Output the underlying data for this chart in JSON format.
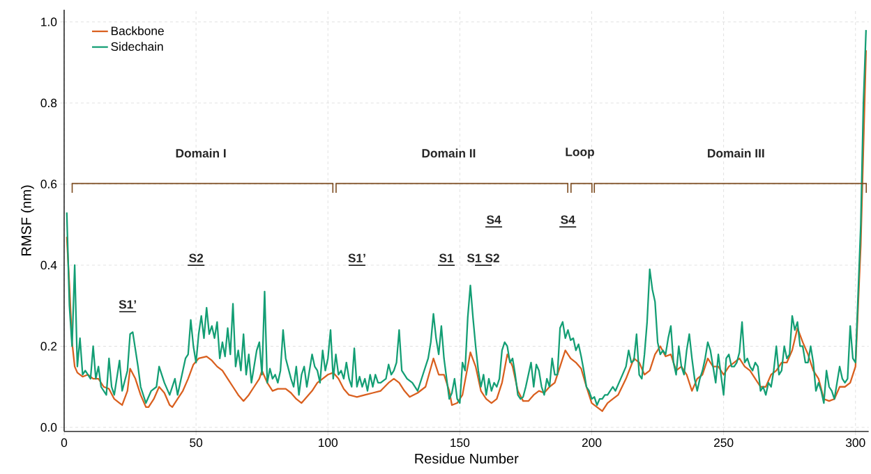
{
  "chart_data": {
    "type": "line",
    "xlabel": "Residue Number",
    "ylabel": "RMSF (nm)",
    "xlim": [
      0,
      305
    ],
    "ylim": [
      -0.01,
      1.03
    ],
    "xticks": [
      0,
      50,
      100,
      150,
      200,
      250,
      300
    ],
    "yticks": [
      {
        "value": 0,
        "label": "0.0"
      },
      {
        "value": 0.2,
        "label": "0.2"
      },
      {
        "value": 0.4,
        "label": "0.4"
      },
      {
        "value": 0.6,
        "label": "0.6"
      },
      {
        "value": 0.8,
        "label": "0.8"
      },
      {
        "value": 1.0,
        "label": "1.0"
      }
    ],
    "grid": true,
    "legend": "top left",
    "series": [
      {
        "name": "Backbone",
        "color": "#d95f1e",
        "x": [
          1,
          2,
          3,
          4,
          5,
          7,
          9,
          11,
          13,
          15,
          17,
          19,
          21,
          22,
          24,
          25,
          27,
          29,
          31,
          32,
          34,
          36,
          38,
          40,
          41,
          43,
          45,
          47,
          49,
          51,
          54,
          56,
          58,
          60,
          62,
          64,
          66,
          68,
          70,
          72,
          74,
          75,
          77,
          79,
          81,
          84,
          86,
          88,
          90,
          92,
          94,
          96,
          98,
          100,
          102,
          104,
          106,
          108,
          111,
          114,
          117,
          120,
          123,
          125,
          127,
          129,
          131,
          134,
          137,
          140,
          142,
          144,
          146,
          147,
          149,
          151,
          153,
          154,
          156,
          158,
          160,
          162,
          164,
          166,
          168,
          170,
          172,
          174,
          176,
          178,
          180,
          182,
          184,
          186,
          188,
          190,
          192,
          194,
          196,
          198,
          200,
          202,
          204,
          206,
          208,
          210,
          213,
          216,
          218,
          220,
          222,
          224,
          226,
          228,
          230,
          232,
          234,
          236,
          238,
          240,
          242,
          244,
          246,
          248,
          250,
          252,
          254,
          256,
          258,
          260,
          262,
          264,
          266,
          268,
          270,
          272,
          274,
          276,
          278,
          280,
          282,
          284,
          286,
          288,
          290,
          292,
          294,
          296,
          298,
          300,
          302,
          304
        ],
        "values": [
          0.47,
          0.35,
          0.21,
          0.15,
          0.135,
          0.125,
          0.13,
          0.12,
          0.12,
          0.1,
          0.095,
          0.07,
          0.06,
          0.055,
          0.09,
          0.145,
          0.12,
          0.08,
          0.05,
          0.05,
          0.07,
          0.1,
          0.085,
          0.055,
          0.05,
          0.07,
          0.09,
          0.12,
          0.155,
          0.17,
          0.175,
          0.165,
          0.15,
          0.14,
          0.12,
          0.1,
          0.08,
          0.065,
          0.08,
          0.1,
          0.12,
          0.14,
          0.11,
          0.09,
          0.095,
          0.095,
          0.085,
          0.07,
          0.06,
          0.075,
          0.09,
          0.11,
          0.12,
          0.13,
          0.135,
          0.12,
          0.095,
          0.08,
          0.075,
          0.08,
          0.085,
          0.09,
          0.11,
          0.12,
          0.11,
          0.09,
          0.075,
          0.085,
          0.1,
          0.17,
          0.13,
          0.13,
          0.09,
          0.055,
          0.06,
          0.08,
          0.15,
          0.185,
          0.15,
          0.09,
          0.07,
          0.06,
          0.07,
          0.11,
          0.18,
          0.15,
          0.09,
          0.065,
          0.065,
          0.08,
          0.09,
          0.085,
          0.1,
          0.11,
          0.15,
          0.19,
          0.17,
          0.16,
          0.145,
          0.1,
          0.06,
          0.05,
          0.04,
          0.06,
          0.07,
          0.08,
          0.12,
          0.17,
          0.16,
          0.13,
          0.14,
          0.18,
          0.2,
          0.175,
          0.18,
          0.14,
          0.15,
          0.13,
          0.09,
          0.12,
          0.13,
          0.17,
          0.15,
          0.15,
          0.13,
          0.15,
          0.16,
          0.17,
          0.15,
          0.14,
          0.12,
          0.1,
          0.1,
          0.13,
          0.14,
          0.16,
          0.16,
          0.19,
          0.245,
          0.21,
          0.18,
          0.14,
          0.12,
          0.07,
          0.065,
          0.07,
          0.1,
          0.1,
          0.11,
          0.15,
          0.45,
          0.93
        ]
      },
      {
        "name": "Sidechain",
        "color": "#139e74",
        "x": [
          1,
          2,
          3,
          4,
          5,
          6,
          7,
          8,
          10,
          11,
          12,
          13,
          14,
          16,
          17,
          18,
          19,
          21,
          22,
          24,
          25,
          26,
          28,
          29,
          31,
          33,
          35,
          36,
          38,
          40,
          42,
          43,
          45,
          46,
          47,
          48,
          49,
          50,
          51,
          52,
          53,
          54,
          55,
          56,
          57,
          58,
          59,
          60,
          61,
          62,
          63,
          64,
          65,
          66,
          67,
          68,
          69,
          70,
          71,
          72,
          73,
          74,
          75,
          76,
          77,
          78,
          79,
          80,
          81,
          82,
          83,
          84,
          86,
          87,
          88,
          89,
          90,
          91,
          92,
          93,
          94,
          95,
          96,
          97,
          98,
          99,
          100,
          101,
          102,
          103,
          104,
          105,
          106,
          107,
          108,
          109,
          110,
          111,
          112,
          113,
          114,
          115,
          116,
          117,
          118,
          119,
          120,
          122,
          123,
          124,
          125,
          126,
          127,
          128,
          130,
          132,
          134,
          136,
          138,
          139,
          140,
          141,
          142,
          143,
          144,
          145,
          146,
          147,
          148,
          149,
          150,
          151,
          152,
          153,
          154,
          155,
          156,
          157,
          158,
          159,
          160,
          161,
          162,
          163,
          164,
          165,
          166,
          167,
          168,
          169,
          170,
          171,
          172,
          173,
          174,
          175,
          176,
          177,
          178,
          179,
          180,
          181,
          182,
          183,
          184,
          185,
          186,
          187,
          188,
          189,
          190,
          191,
          192,
          193,
          194,
          195,
          196,
          197,
          198,
          199,
          200,
          201,
          202,
          203,
          204,
          205,
          206,
          207,
          208,
          209,
          211,
          213,
          214,
          215,
          216,
          217,
          218,
          219,
          220,
          221,
          222,
          223,
          224,
          225,
          226,
          227,
          228,
          229,
          230,
          231,
          232,
          233,
          234,
          235,
          236,
          237,
          238,
          239,
          240,
          241,
          242,
          243,
          244,
          245,
          246,
          247,
          248,
          249,
          250,
          251,
          252,
          253,
          254,
          255,
          256,
          257,
          258,
          259,
          260,
          261,
          262,
          263,
          264,
          265,
          266,
          267,
          268,
          269,
          270,
          271,
          272,
          273,
          274,
          275,
          276,
          277,
          278,
          279,
          280,
          281,
          282,
          283,
          284,
          285,
          286,
          287,
          288,
          289,
          290,
          291,
          292,
          293,
          294,
          295,
          296,
          297,
          298,
          299,
          300,
          302,
          303,
          304
        ],
        "values": [
          0.53,
          0.3,
          0.2,
          0.4,
          0.15,
          0.22,
          0.13,
          0.14,
          0.12,
          0.2,
          0.12,
          0.15,
          0.1,
          0.08,
          0.17,
          0.1,
          0.08,
          0.165,
          0.09,
          0.14,
          0.23,
          0.235,
          0.15,
          0.1,
          0.06,
          0.09,
          0.1,
          0.15,
          0.11,
          0.08,
          0.12,
          0.08,
          0.14,
          0.17,
          0.18,
          0.265,
          0.2,
          0.16,
          0.23,
          0.275,
          0.22,
          0.295,
          0.23,
          0.25,
          0.22,
          0.26,
          0.17,
          0.21,
          0.175,
          0.245,
          0.18,
          0.305,
          0.15,
          0.19,
          0.14,
          0.23,
          0.13,
          0.18,
          0.11,
          0.15,
          0.19,
          0.21,
          0.13,
          0.335,
          0.11,
          0.145,
          0.12,
          0.13,
          0.11,
          0.14,
          0.24,
          0.17,
          0.12,
          0.1,
          0.15,
          0.08,
          0.13,
          0.15,
          0.1,
          0.14,
          0.18,
          0.15,
          0.14,
          0.11,
          0.19,
          0.14,
          0.17,
          0.24,
          0.12,
          0.18,
          0.13,
          0.14,
          0.12,
          0.16,
          0.12,
          0.1,
          0.195,
          0.1,
          0.125,
          0.1,
          0.12,
          0.09,
          0.13,
          0.1,
          0.13,
          0.11,
          0.11,
          0.12,
          0.155,
          0.13,
          0.14,
          0.16,
          0.24,
          0.14,
          0.12,
          0.11,
          0.09,
          0.13,
          0.17,
          0.21,
          0.28,
          0.22,
          0.18,
          0.25,
          0.17,
          0.12,
          0.07,
          0.085,
          0.12,
          0.07,
          0.06,
          0.16,
          0.14,
          0.27,
          0.35,
          0.27,
          0.2,
          0.14,
          0.1,
          0.13,
          0.08,
          0.12,
          0.09,
          0.11,
          0.1,
          0.12,
          0.19,
          0.21,
          0.2,
          0.16,
          0.17,
          0.13,
          0.08,
          0.07,
          0.075,
          0.1,
          0.13,
          0.16,
          0.1,
          0.155,
          0.14,
          0.1,
          0.08,
          0.12,
          0.1,
          0.17,
          0.13,
          0.13,
          0.245,
          0.26,
          0.22,
          0.24,
          0.215,
          0.22,
          0.19,
          0.205,
          0.175,
          0.14,
          0.1,
          0.09,
          0.07,
          0.075,
          0.055,
          0.07,
          0.07,
          0.08,
          0.08,
          0.09,
          0.1,
          0.09,
          0.12,
          0.15,
          0.19,
          0.16,
          0.165,
          0.23,
          0.13,
          0.12,
          0.18,
          0.26,
          0.39,
          0.34,
          0.31,
          0.21,
          0.18,
          0.19,
          0.18,
          0.22,
          0.25,
          0.16,
          0.13,
          0.2,
          0.15,
          0.13,
          0.19,
          0.23,
          0.17,
          0.12,
          0.09,
          0.12,
          0.14,
          0.17,
          0.21,
          0.19,
          0.15,
          0.11,
          0.18,
          0.13,
          0.08,
          0.17,
          0.18,
          0.15,
          0.15,
          0.16,
          0.185,
          0.26,
          0.16,
          0.17,
          0.15,
          0.14,
          0.16,
          0.15,
          0.09,
          0.1,
          0.08,
          0.11,
          0.1,
          0.14,
          0.2,
          0.13,
          0.14,
          0.2,
          0.17,
          0.18,
          0.275,
          0.24,
          0.26,
          0.2,
          0.2,
          0.16,
          0.16,
          0.2,
          0.16,
          0.09,
          0.11,
          0.09,
          0.06,
          0.14,
          0.1,
          0.09,
          0.07,
          0.11,
          0.15,
          0.12,
          0.11,
          0.12,
          0.25,
          0.17,
          0.16,
          0.5,
          0.8,
          0.98
        ]
      }
    ],
    "annotations": [
      "Domain I",
      "Domain II",
      "Loop",
      "Domain III",
      "S1’",
      "S2",
      "S1’",
      "S1",
      "S1 S2",
      "S4",
      "S4"
    ]
  }
}
